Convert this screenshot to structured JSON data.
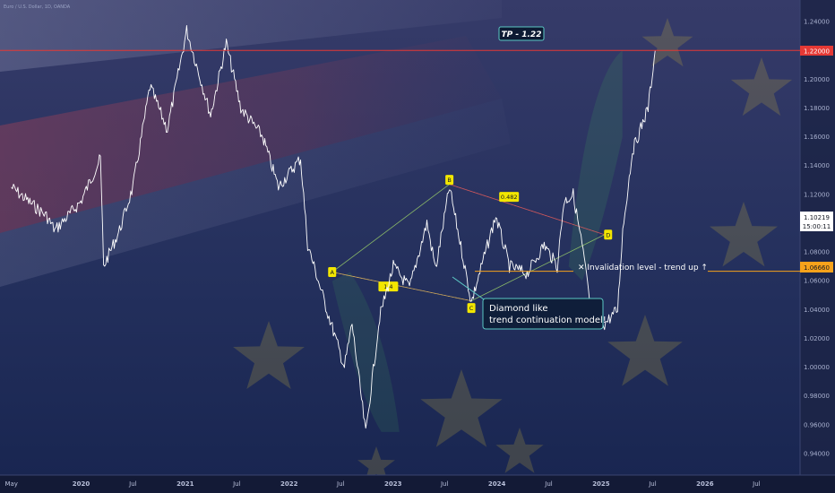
{
  "header": {
    "symbol_line": "Euro / U.S. Dollar, 1D, OANDA"
  },
  "colors": {
    "background_top": "#3b3f6e",
    "background_bottom": "#1a2550",
    "price_line": "#ffffff",
    "resistance_line": "#e53935",
    "invalidation_line": "#f7a21b",
    "pattern_label_bg": "#f2e600",
    "callout_border": "#5bc8c4",
    "callout_bg": "#0f1e3a"
  },
  "annotations": {
    "tp_label": "TP - 1.22",
    "resistance_price": "1.22000",
    "invalidation_text": "✕ Invalidation level - trend up ↑",
    "invalidation_price": "1.06660",
    "current_price": "1.10219",
    "countdown": "15:00:11",
    "callout_line1": "Diamond like",
    "callout_line2": "trend continuation model!",
    "points": [
      {
        "label": "A"
      },
      {
        "label": "B"
      },
      {
        "label": "C"
      },
      {
        "label": "D"
      }
    ],
    "ratios": [
      {
        "label": "1.4"
      },
      {
        "label": "0.482"
      }
    ]
  },
  "chart_data": {
    "type": "line",
    "ylim": [
      0.925,
      1.255
    ],
    "x_tick_labels": [
      "May",
      "2020",
      "Jul",
      "2021",
      "Jul",
      "2022",
      "Jul",
      "2023",
      "Jul",
      "2024",
      "Jul",
      "2025",
      "Jul",
      "2026",
      "Jul"
    ],
    "y_tick_labels": [
      "1.24000",
      "1.22000",
      "1.20000",
      "1.18000",
      "1.16000",
      "1.14000",
      "1.12000",
      "1.10000",
      "1.08000",
      "1.06000",
      "1.04000",
      "1.02000",
      "1.00000",
      "0.98000",
      "0.96000",
      "0.94000"
    ],
    "x_tick_dates": [
      "2019-05-01",
      "2020-01-01",
      "2020-07-01",
      "2021-01-01",
      "2021-07-01",
      "2022-01-01",
      "2022-07-01",
      "2023-01-01",
      "2023-07-01",
      "2024-01-01",
      "2024-07-01",
      "2025-01-01",
      "2025-07-01",
      "2026-01-01",
      "2026-07-01"
    ],
    "y_tick_values": [
      1.24,
      1.22,
      1.2,
      1.18,
      1.16,
      1.14,
      1.12,
      1.1,
      1.08,
      1.06,
      1.04,
      1.02,
      1.0,
      0.98,
      0.96,
      0.94
    ],
    "series": [
      {
        "x": [
          "2019-05-01",
          "2019-07-01",
          "2019-09-01",
          "2019-10-01",
          "2019-12-31",
          "2020-03-09",
          "2020-03-20",
          "2020-05-15",
          "2020-07-01",
          "2020-08-30",
          "2020-10-30",
          "2021-01-06",
          "2021-03-31",
          "2021-05-25",
          "2021-07-15",
          "2021-09-30",
          "2021-11-24",
          "2022-02-10",
          "2022-03-07",
          "2022-05-13",
          "2022-07-14",
          "2022-08-10",
          "2022-09-27",
          "2022-11-15",
          "2023-01-02",
          "2023-02-28",
          "2023-04-30",
          "2023-05-31",
          "2023-07-18",
          "2023-08-31",
          "2023-10-03",
          "2023-12-28",
          "2024-02-14",
          "2024-04-16",
          "2024-06-15",
          "2024-07-31",
          "2024-08-23",
          "2024-09-25",
          "2024-10-30",
          "2024-11-22",
          "2025-01-13",
          "2025-02-28",
          "2025-03-18",
          "2025-04-21",
          "2025-06-15",
          "2025-07-10"
        ],
        "y": [
          1.125,
          1.115,
          1.105,
          1.095,
          1.115,
          1.145,
          1.07,
          1.095,
          1.125,
          1.195,
          1.165,
          1.234,
          1.175,
          1.225,
          1.18,
          1.16,
          1.125,
          1.145,
          1.085,
          1.04,
          1.0,
          1.03,
          0.954,
          1.035,
          1.07,
          1.055,
          1.1,
          1.068,
          1.125,
          1.08,
          1.045,
          1.105,
          1.07,
          1.065,
          1.085,
          1.07,
          1.115,
          1.12,
          1.08,
          1.045,
          1.03,
          1.04,
          1.095,
          1.15,
          1.18,
          1.22
        ]
      }
    ],
    "pattern_points": [
      {
        "label": "A",
        "x": "2022-06-01",
        "y": 1.066
      },
      {
        "label": "B",
        "x": "2023-07-18",
        "y": 1.127
      },
      {
        "label": "C",
        "x": "2023-10-03",
        "y": 1.046
      },
      {
        "label": "D",
        "x": "2025-01-13",
        "y": 1.092
      }
    ],
    "horizontal_levels": [
      1.22,
      1.0666
    ]
  }
}
